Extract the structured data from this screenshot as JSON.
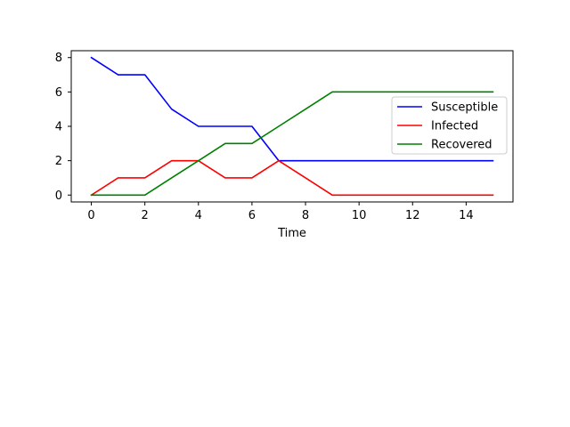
{
  "chart_data": {
    "type": "line",
    "title": "",
    "xlabel": "Time",
    "ylabel": "",
    "xlim": [
      -0.75,
      15.75
    ],
    "ylim": [
      -0.4,
      8.4
    ],
    "xticks": [
      0,
      2,
      4,
      6,
      8,
      10,
      12,
      14
    ],
    "yticks": [
      0,
      2,
      4,
      6,
      8
    ],
    "x": [
      0,
      1,
      2,
      3,
      4,
      5,
      6,
      7,
      8,
      9,
      10,
      11,
      12,
      13,
      14,
      15
    ],
    "grid": false,
    "legend_position": "right",
    "series": [
      {
        "name": "Susceptible",
        "color": "#0000ff",
        "values": [
          8,
          7,
          7,
          5,
          4,
          4,
          4,
          2,
          2,
          2,
          2,
          2,
          2,
          2,
          2,
          2
        ]
      },
      {
        "name": "Infected",
        "color": "#ff0000",
        "values": [
          0,
          1,
          1,
          2,
          2,
          1,
          1,
          2,
          1,
          0,
          0,
          0,
          0,
          0,
          0,
          0
        ]
      },
      {
        "name": "Recovered",
        "color": "#008000",
        "values": [
          0,
          0,
          0,
          1,
          2,
          3,
          3,
          4,
          5,
          6,
          6,
          6,
          6,
          6,
          6,
          6
        ]
      }
    ]
  }
}
